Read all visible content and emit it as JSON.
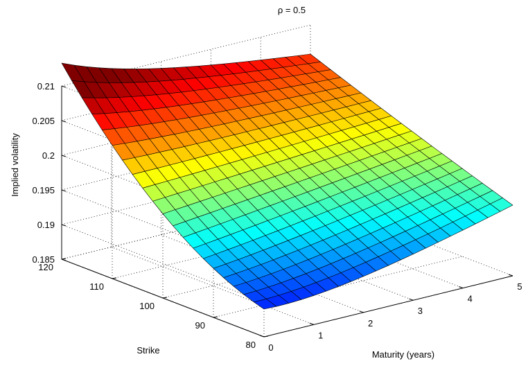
{
  "chart_data": {
    "type": "surface",
    "title": "ρ = 0.5",
    "xlabel": "Maturity (years)",
    "ylabel": "Strike",
    "zlabel": "Implied volatility",
    "xlim": [
      0,
      5
    ],
    "ylim": [
      80,
      120
    ],
    "zlim": [
      0.185,
      0.21
    ],
    "x_ticks": [
      "0",
      "1",
      "2",
      "3",
      "4",
      "5"
    ],
    "y_ticks": [
      "80",
      "90",
      "100",
      "110",
      "120"
    ],
    "z_ticks": [
      "0.185",
      "0.19",
      "0.195",
      "0.2",
      "0.205",
      "0.21"
    ],
    "grid": true,
    "colormap": "jet",
    "grid_size": {
      "maturity_steps": 20,
      "strike_steps": 20
    },
    "surface_corners": [
      {
        "maturity": 0,
        "strike": 120,
        "iv": 0.2093
      },
      {
        "maturity": 5,
        "strike": 120,
        "iv": 0.2056
      },
      {
        "maturity": 5,
        "strike": 80,
        "iv": 0.195
      },
      {
        "maturity": 0,
        "strike": 80,
        "iv": 0.185
      }
    ]
  }
}
